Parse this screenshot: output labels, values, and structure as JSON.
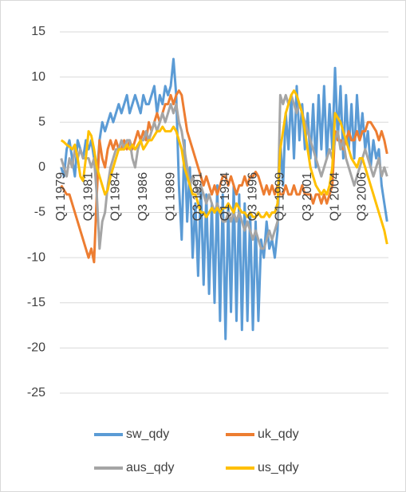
{
  "chart_data": {
    "type": "line",
    "categories": [
      "Q1 1979",
      null,
      null,
      null,
      null,
      null,
      null,
      null,
      null,
      null,
      "Q3 1981",
      null,
      null,
      null,
      null,
      null,
      null,
      null,
      null,
      null,
      "Q1 1984",
      null,
      null,
      null,
      null,
      null,
      null,
      null,
      null,
      null,
      "Q3 1986",
      null,
      null,
      null,
      null,
      null,
      null,
      null,
      null,
      null,
      "Q1 1989",
      null,
      null,
      null,
      null,
      null,
      null,
      null,
      null,
      null,
      "Q3 1991",
      null,
      null,
      null,
      null,
      null,
      null,
      null,
      null,
      null,
      "Q1 1994",
      null,
      null,
      null,
      null,
      null,
      null,
      null,
      null,
      null,
      "Q3 1996",
      null,
      null,
      null,
      null,
      null,
      null,
      null,
      null,
      null,
      "Q1 1999",
      null,
      null,
      null,
      null,
      null,
      null,
      null,
      null,
      null,
      "Q3 2001",
      null,
      null,
      null,
      null,
      null,
      null,
      null,
      null,
      null,
      "Q1 2004",
      null,
      null,
      null,
      null,
      null,
      null,
      null,
      null,
      null,
      "Q3 2006",
      null,
      null,
      null,
      null,
      null,
      null,
      null,
      null,
      null
    ],
    "series": [
      {
        "name": "sw_qdy",
        "color": "#5b9bd5",
        "values": [
          0,
          -1,
          2,
          3,
          1,
          -1,
          3,
          2,
          1,
          3,
          2,
          3,
          1,
          -1,
          3,
          5,
          4,
          5,
          6,
          5,
          6,
          7,
          6,
          7,
          8,
          6,
          7,
          8,
          7,
          6,
          8,
          7,
          7,
          8,
          9,
          6,
          8,
          7,
          9,
          8,
          9,
          12,
          8,
          -2,
          -8,
          3,
          -6,
          0,
          -10,
          -4,
          -12,
          -2,
          -13,
          -3,
          -14,
          -4,
          -15,
          -2,
          -17,
          -3,
          -19,
          -4,
          -16,
          -2,
          -17,
          -3,
          -18,
          -4,
          -17,
          -5,
          -18,
          -6,
          -17,
          -8,
          -10,
          -6,
          -9,
          -8,
          -10,
          -7,
          3,
          -2,
          6,
          2,
          8,
          1,
          9,
          3,
          7,
          2,
          6,
          1,
          7,
          0,
          8,
          2,
          9,
          1,
          7,
          2,
          11,
          3,
          9,
          1,
          8,
          2,
          7,
          1,
          8,
          3,
          6,
          2,
          4,
          0,
          3,
          1,
          2,
          -2,
          -4,
          -6
        ]
      },
      {
        "name": "uk_qdy",
        "color": "#ed7d31",
        "values": [
          -2,
          -2.5,
          -3,
          -3,
          -4,
          -5,
          -6,
          -7,
          -8,
          -9,
          -10,
          -9,
          -10.5,
          -3,
          3,
          1,
          0,
          2,
          3,
          2,
          3,
          2,
          2,
          3,
          2,
          3,
          2,
          3,
          4,
          3,
          4,
          3,
          5,
          4,
          5,
          6,
          5,
          6,
          7,
          7,
          8,
          7,
          8,
          8.5,
          8,
          6,
          4,
          3,
          2,
          1,
          0,
          -1,
          -2,
          -1,
          -2,
          -3,
          -2,
          -3,
          -2,
          -1,
          -1,
          -2,
          -1,
          -2,
          -3,
          -2,
          -2,
          -1,
          -2,
          -1,
          -1,
          -0.5,
          -1,
          -2,
          -3,
          -2,
          -3,
          -2,
          -3,
          -2,
          -3,
          -3,
          -2,
          -3,
          -3,
          -2,
          -3,
          -3,
          -2,
          -3,
          -3,
          -3,
          -4,
          -3,
          -3,
          -4,
          -3,
          -4,
          -3,
          -2,
          4,
          3,
          3,
          2,
          3,
          4,
          3,
          3,
          4,
          3,
          4,
          4,
          5,
          5,
          4.5,
          4,
          3,
          4,
          3,
          1.5
        ]
      },
      {
        "name": "aus_qdy",
        "color": "#a5a5a5",
        "values": [
          1,
          0,
          -1,
          1,
          0,
          2,
          1,
          2,
          1,
          1,
          1,
          0,
          1,
          -3,
          -9,
          -6,
          -5,
          -2,
          0,
          1,
          2,
          2,
          3,
          2,
          3,
          3,
          1,
          0,
          2,
          3,
          3,
          4,
          3,
          4,
          5,
          4,
          5,
          6,
          5,
          6,
          7,
          6,
          7,
          5,
          4,
          2,
          0,
          -2,
          -1,
          -2,
          -3,
          -2,
          -3,
          -4,
          -3,
          -4,
          -5,
          -4,
          -5,
          -6,
          -6,
          -5,
          -6,
          -5,
          -6,
          -5,
          -6,
          -7,
          -6,
          -7,
          -8,
          -7,
          -8,
          -9,
          -9,
          -8,
          -7,
          -8,
          -7,
          -6,
          8,
          7,
          8,
          7,
          8,
          7,
          6,
          7,
          6,
          5,
          4,
          3,
          2,
          1,
          0,
          -1,
          0,
          1,
          2,
          1,
          3,
          4,
          2,
          3,
          1,
          0,
          -1,
          -2,
          -1,
          0,
          1,
          2,
          1,
          0,
          -1,
          0,
          1,
          -1,
          0,
          -1
        ]
      },
      {
        "name": "us_qdy",
        "color": "#ffc000",
        "values": [
          3,
          2.8,
          2.5,
          2.3,
          2,
          2.5,
          1,
          -1,
          -1.5,
          1,
          4,
          3.5,
          2,
          0,
          -1,
          -2,
          -3,
          -2.5,
          -1,
          0,
          1,
          2,
          2,
          2,
          2.5,
          2,
          2.5,
          2,
          2.5,
          3,
          2,
          2.5,
          3,
          3,
          3.5,
          4,
          4,
          4.5,
          4,
          4,
          4,
          4.5,
          4,
          3,
          2,
          0,
          -1,
          -2,
          -3,
          -3,
          -4,
          -5,
          -5,
          -5.5,
          -5,
          -4.5,
          -5,
          -4.5,
          -5,
          -4.5,
          -4.5,
          -4,
          -4.5,
          -5,
          -4,
          -4.5,
          -5,
          -5,
          -5.5,
          -5,
          -5.5,
          -5.5,
          -5,
          -5.5,
          -5.5,
          -5,
          -5.5,
          -5,
          -5,
          -4,
          2,
          4,
          6,
          7,
          8,
          8.5,
          8,
          7,
          6,
          4,
          2,
          0,
          -1,
          -2,
          -2.5,
          -3,
          -2.5,
          -3,
          -2,
          0,
          6,
          5.5,
          5,
          4,
          3,
          2,
          1,
          0.5,
          0,
          1,
          1,
          0,
          -1,
          -2,
          -3,
          -4,
          -5,
          -6,
          -7,
          -8.5
        ]
      }
    ],
    "ylim": [
      -25,
      15
    ],
    "yticks": [
      -25,
      -20,
      -15,
      -10,
      -5,
      0,
      5,
      10,
      15
    ],
    "grid": true
  }
}
